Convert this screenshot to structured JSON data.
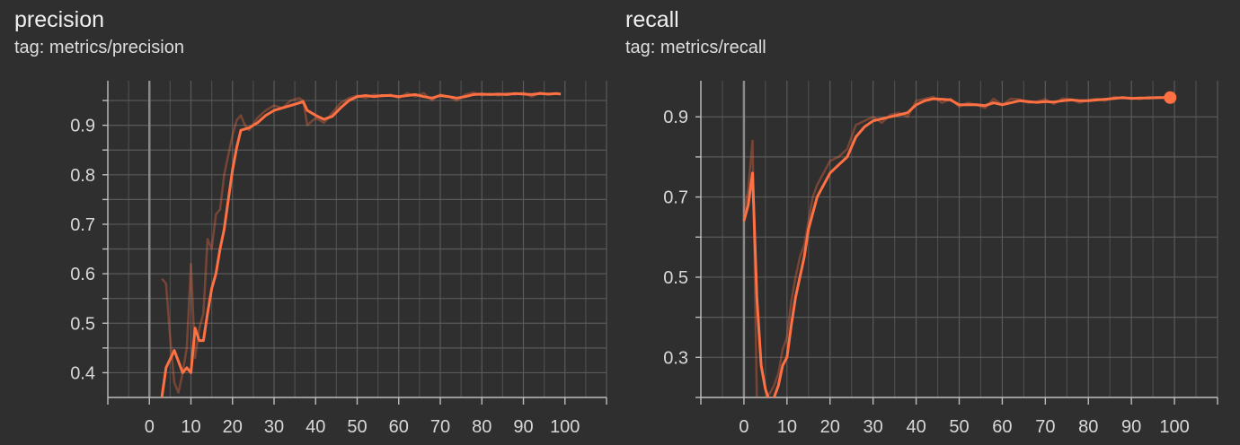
{
  "charts": [
    {
      "id": "precision",
      "title": "precision",
      "tag": "tag: metrics/precision",
      "chart_data": {
        "type": "line",
        "title": "precision",
        "xlabel": "",
        "ylabel": "",
        "xlim": [
          -10,
          110
        ],
        "ylim": [
          0.35,
          0.99
        ],
        "xticks": [
          0,
          10,
          20,
          30,
          40,
          50,
          60,
          70,
          80,
          90,
          100
        ],
        "yticks": [
          0.4,
          0.5,
          0.6,
          0.7,
          0.8,
          0.9
        ],
        "ytick_labels": [
          "0.4",
          "0.5",
          "0.6",
          "0.7",
          "0.8",
          "0.9"
        ],
        "grid": true,
        "color": "#ff7043",
        "series": [
          {
            "style": "smoothed",
            "x": [
              3,
              4,
              6,
              8,
              9,
              10,
              11,
              12,
              13,
              14,
              15,
              16,
              17,
              18,
              19,
              20,
              21,
              22,
              24,
              26,
              28,
              30,
              32,
              34,
              36,
              37,
              38,
              40,
              42,
              44,
              46,
              48,
              50,
              52,
              54,
              56,
              58,
              60,
              62,
              64,
              66,
              68,
              70,
              72,
              74,
              76,
              78,
              80,
              82,
              84,
              86,
              88,
              90,
              92,
              94,
              96,
              98,
              99
            ],
            "y": [
              0.35,
              0.41,
              0.445,
              0.4,
              0.41,
              0.4,
              0.49,
              0.465,
              0.465,
              0.52,
              0.57,
              0.6,
              0.65,
              0.69,
              0.75,
              0.81,
              0.855,
              0.89,
              0.895,
              0.905,
              0.92,
              0.93,
              0.935,
              0.94,
              0.945,
              0.948,
              0.93,
              0.92,
              0.912,
              0.918,
              0.935,
              0.95,
              0.958,
              0.96,
              0.958,
              0.96,
              0.96,
              0.958,
              0.96,
              0.962,
              0.958,
              0.955,
              0.96,
              0.958,
              0.955,
              0.958,
              0.962,
              0.963,
              0.962,
              0.963,
              0.962,
              0.964,
              0.963,
              0.962,
              0.964,
              0.963,
              0.964,
              0.963
            ]
          },
          {
            "style": "raw",
            "x": [
              3,
              4,
              5,
              6,
              7,
              8,
              9,
              10,
              11,
              12,
              13,
              14,
              15,
              16,
              17,
              18,
              19,
              20,
              21,
              22,
              23,
              24,
              26,
              28,
              30,
              32,
              34,
              36,
              37,
              38,
              40,
              42,
              44,
              46,
              48,
              50,
              52,
              54,
              56,
              58,
              60,
              62,
              64,
              66,
              68,
              69,
              70,
              72,
              74,
              76,
              78,
              80,
              82,
              84,
              86,
              88,
              90,
              92,
              94,
              96,
              98,
              99
            ],
            "y": [
              0.59,
              0.58,
              0.47,
              0.38,
              0.36,
              0.4,
              0.45,
              0.62,
              0.43,
              0.49,
              0.52,
              0.67,
              0.65,
              0.72,
              0.73,
              0.8,
              0.84,
              0.88,
              0.91,
              0.92,
              0.9,
              0.89,
              0.915,
              0.93,
              0.94,
              0.935,
              0.95,
              0.955,
              0.95,
              0.9,
              0.915,
              0.905,
              0.925,
              0.945,
              0.955,
              0.96,
              0.955,
              0.962,
              0.958,
              0.962,
              0.955,
              0.965,
              0.958,
              0.965,
              0.95,
              0.958,
              0.962,
              0.958,
              0.95,
              0.962,
              0.966,
              0.96,
              0.964,
              0.96,
              0.965,
              0.962,
              0.966,
              0.958,
              0.966,
              0.962,
              0.965,
              0.963
            ]
          }
        ]
      }
    },
    {
      "id": "recall",
      "title": "recall",
      "tag": "tag: metrics/recall",
      "chart_data": {
        "type": "line",
        "title": "recall",
        "xlabel": "",
        "ylabel": "",
        "xlim": [
          -10,
          110
        ],
        "ylim": [
          0.2,
          0.99
        ],
        "xticks": [
          0,
          10,
          20,
          30,
          40,
          50,
          60,
          70,
          80,
          90,
          100
        ],
        "yticks": [
          0.3,
          0.5,
          0.7,
          0.9
        ],
        "ytick_labels": [
          "0.3",
          "0.5",
          "0.7",
          "0.9"
        ],
        "grid": true,
        "color": "#ff7043",
        "last_point": [
          99,
          0.948
        ],
        "series": [
          {
            "style": "smoothed",
            "x": [
              0,
              1,
              2,
              3,
              4,
              5,
              6,
              7,
              8,
              9,
              10,
              11,
              12,
              13,
              14,
              15,
              16,
              17,
              18,
              20,
              22,
              24,
              26,
              28,
              30,
              32,
              34,
              36,
              38,
              40,
              42,
              44,
              46,
              48,
              50,
              52,
              54,
              56,
              58,
              60,
              62,
              64,
              66,
              68,
              70,
              72,
              74,
              76,
              78,
              80,
              82,
              84,
              86,
              88,
              90,
              92,
              94,
              96,
              98,
              99
            ],
            "y": [
              0.64,
              0.68,
              0.76,
              0.45,
              0.28,
              0.22,
              0.19,
              0.2,
              0.23,
              0.28,
              0.3,
              0.38,
              0.45,
              0.5,
              0.55,
              0.62,
              0.66,
              0.7,
              0.72,
              0.76,
              0.78,
              0.8,
              0.85,
              0.875,
              0.89,
              0.895,
              0.9,
              0.905,
              0.91,
              0.93,
              0.94,
              0.945,
              0.944,
              0.942,
              0.93,
              0.93,
              0.93,
              0.928,
              0.935,
              0.93,
              0.935,
              0.94,
              0.938,
              0.936,
              0.938,
              0.937,
              0.94,
              0.942,
              0.94,
              0.94,
              0.942,
              0.944,
              0.946,
              0.948,
              0.946,
              0.947,
              0.947,
              0.948,
              0.948,
              0.948
            ]
          },
          {
            "style": "raw",
            "x": [
              0,
              1,
              2,
              3,
              4,
              5,
              6,
              7,
              8,
              9,
              10,
              11,
              12,
              13,
              14,
              15,
              16,
              17,
              18,
              20,
              22,
              24,
              26,
              28,
              30,
              32,
              34,
              36,
              38,
              40,
              42,
              44,
              46,
              48,
              50,
              52,
              54,
              56,
              58,
              60,
              62,
              64,
              66,
              68,
              70,
              72,
              74,
              76,
              78,
              80,
              82,
              84,
              86,
              88,
              90,
              92,
              94,
              96,
              98,
              99
            ],
            "y": [
              0.66,
              0.72,
              0.84,
              0.2,
              0.19,
              0.2,
              0.21,
              0.23,
              0.26,
              0.32,
              0.35,
              0.44,
              0.5,
              0.55,
              0.58,
              0.64,
              0.7,
              0.73,
              0.75,
              0.79,
              0.8,
              0.82,
              0.88,
              0.89,
              0.9,
              0.885,
              0.905,
              0.91,
              0.9,
              0.94,
              0.945,
              0.95,
              0.935,
              0.945,
              0.925,
              0.935,
              0.93,
              0.922,
              0.945,
              0.93,
              0.945,
              0.944,
              0.935,
              0.938,
              0.944,
              0.932,
              0.946,
              0.944,
              0.935,
              0.942,
              0.945,
              0.94,
              0.95,
              0.946,
              0.948,
              0.944,
              0.95,
              0.946,
              0.949,
              0.948
            ]
          }
        ]
      }
    }
  ]
}
